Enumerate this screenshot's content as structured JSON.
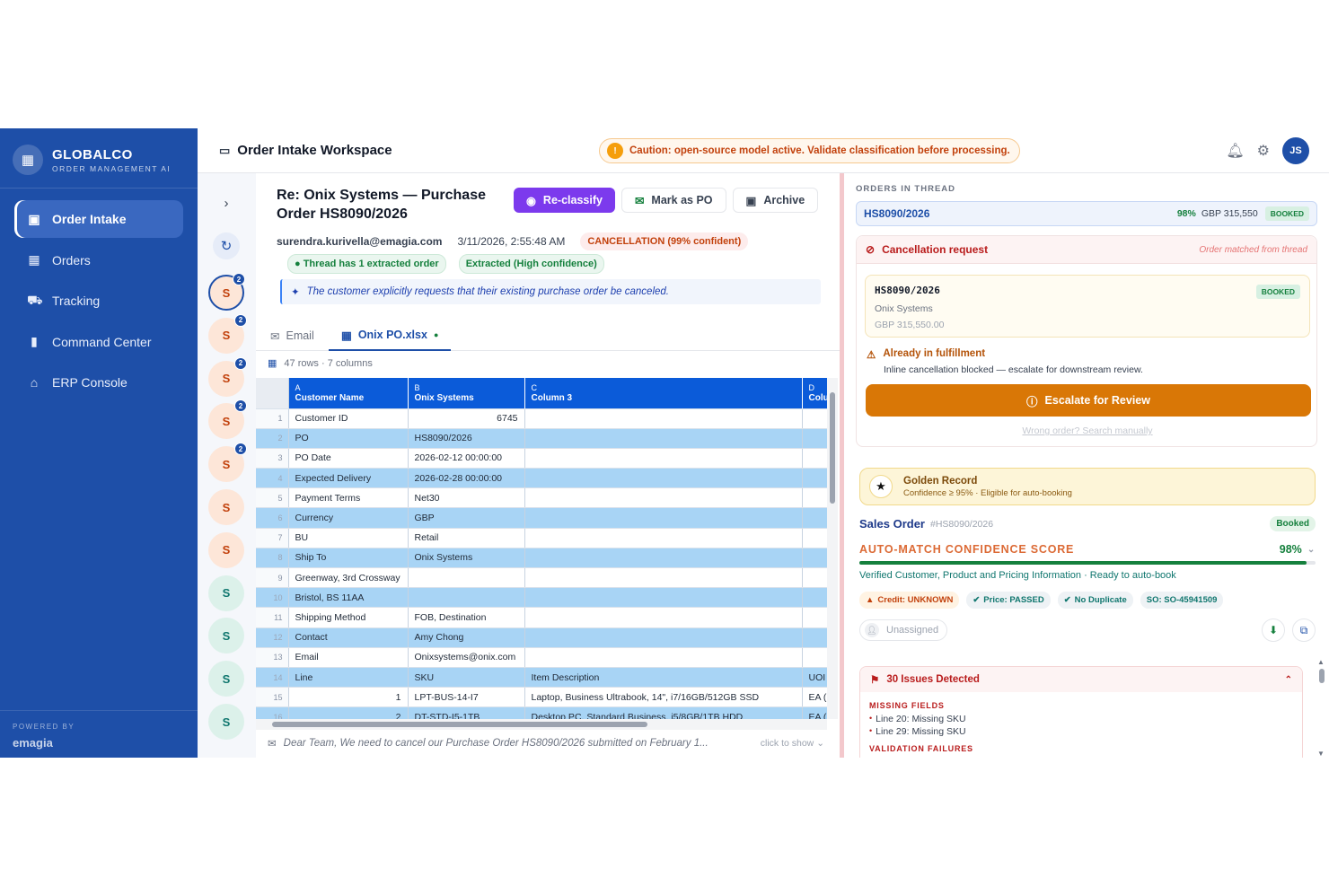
{
  "sidebar": {
    "brand_name": "GLOBALCO",
    "brand_sub": "ORDER MANAGEMENT AI",
    "items": [
      {
        "label": "Order Intake",
        "icon": "inbox-icon"
      },
      {
        "label": "Orders",
        "icon": "grid-icon"
      },
      {
        "label": "Tracking",
        "icon": "truck-icon"
      },
      {
        "label": "Command Center",
        "icon": "bar-chart-icon"
      },
      {
        "label": "ERP Console",
        "icon": "warehouse-icon"
      }
    ],
    "powered_by": "POWERED BY",
    "powered_logo": "emagia"
  },
  "header": {
    "title": "Order Intake Workspace",
    "caution": "Caution: open-source model active. Validate classification before processing.",
    "avatar": "JS"
  },
  "rail": {
    "threads": [
      {
        "letter": "S",
        "badge": "2",
        "color": "orange"
      },
      {
        "letter": "S",
        "badge": "2",
        "color": "orange"
      },
      {
        "letter": "S",
        "badge": "2",
        "color": "orange"
      },
      {
        "letter": "S",
        "badge": "2",
        "color": "orange"
      },
      {
        "letter": "S",
        "badge": "2",
        "color": "orange"
      },
      {
        "letter": "S",
        "badge": "",
        "color": "orange"
      },
      {
        "letter": "S",
        "badge": "",
        "color": "orange"
      },
      {
        "letter": "S",
        "badge": "",
        "color": "green"
      },
      {
        "letter": "S",
        "badge": "",
        "color": "green"
      },
      {
        "letter": "S",
        "badge": "",
        "color": "green"
      },
      {
        "letter": "S",
        "badge": "",
        "color": "green"
      }
    ]
  },
  "email": {
    "subject": "Re: Onix Systems — Purchase Order HS8090/2026",
    "from": "surendra.kurivella@emagia.com",
    "date": "3/11/2026, 2:55:48 AM",
    "classification": "CANCELLATION (99% confident)",
    "chip_thread": "● Thread has 1 extracted order",
    "chip_extracted": "Extracted (High confidence)",
    "ai_note": "The customer explicitly requests that their existing purchase order be canceled.",
    "preview": "Dear Team, We need to cancel our Purchase Order HS8090/2026 submitted on February 1...",
    "click_to_show": "click to show"
  },
  "actions": {
    "reclassify": "Re-classify",
    "mark_po": "Mark as PO",
    "archive": "Archive"
  },
  "tabs": {
    "email": "Email",
    "attachment": "Onix PO.xlsx"
  },
  "sheet": {
    "meta": "47 rows · 7 columns",
    "headers": [
      {
        "letter": "A",
        "name": "Customer Name"
      },
      {
        "letter": "B",
        "name": "Onix Systems"
      },
      {
        "letter": "C",
        "name": "Column 3"
      },
      {
        "letter": "D",
        "name": "Colu"
      }
    ],
    "rows": [
      [
        "1",
        "Customer ID",
        "6745",
        "",
        ""
      ],
      [
        "2",
        "PO",
        "HS8090/2026",
        "",
        ""
      ],
      [
        "3",
        "PO Date",
        "2026-02-12 00:00:00",
        "",
        ""
      ],
      [
        "4",
        "Expected Delivery",
        "2026-02-28 00:00:00",
        "",
        ""
      ],
      [
        "5",
        "Payment Terms",
        "Net30",
        "",
        ""
      ],
      [
        "6",
        "Currency",
        "GBP",
        "",
        ""
      ],
      [
        "7",
        "BU",
        "Retail",
        "",
        ""
      ],
      [
        "8",
        "Ship To",
        "Onix Systems",
        "",
        ""
      ],
      [
        "9",
        "Greenway, 3rd Crossway",
        "",
        "",
        ""
      ],
      [
        "10",
        "Bristol, BS 11AA",
        "",
        "",
        ""
      ],
      [
        "11",
        "Shipping Method",
        "FOB, Destination",
        "",
        ""
      ],
      [
        "12",
        "Contact",
        "Amy Chong",
        "",
        ""
      ],
      [
        "13",
        "Email",
        "Onixsystems@onix.com",
        "",
        ""
      ],
      [
        "14",
        "Line",
        "SKU",
        "Item Description",
        "UOI"
      ],
      [
        "15",
        "1",
        "LPT-BUS-14-I7",
        "Laptop, Business Ultrabook, 14\", i7/16GB/512GB SSD",
        "EA ("
      ],
      [
        "16",
        "2",
        "DT-STD-I5-1TB",
        "Desktop PC, Standard Business, i5/8GB/1TB HDD",
        "EA ("
      ]
    ]
  },
  "right": {
    "orders_label": "ORDERS IN THREAD",
    "order": {
      "id": "HS8090/2026",
      "pct": "98%",
      "amount": "GBP 315,550",
      "status": "BOOKED"
    },
    "cancel_title": "Cancellation request",
    "cancel_note": "Order matched from thread",
    "matched": {
      "id": "HS8090/2026",
      "company": "Onix Systems",
      "amount": "GBP 315,550.00",
      "status": "BOOKED"
    },
    "fulfil_title": "Already in fulfillment",
    "fulfil_sub": "Inline cancellation blocked — escalate for downstream review.",
    "escalate": "Escalate for Review",
    "wrong_order": "Wrong order? Search manually",
    "golden_title": "Golden Record",
    "golden_sub": "Confidence ≥ 95% · Eligible for auto-booking",
    "so_title": "Sales Order",
    "so_id": "#HS8090/2026",
    "so_status": "Booked",
    "score_label": "AUTO-MATCH CONFIDENCE SCORE",
    "score_pct": "98%",
    "score_value": 98,
    "verified": "Verified Customer, Product and Pricing Information · Ready to auto-book",
    "pills": [
      {
        "label": "Credit: UNKNOWN",
        "kind": "warn"
      },
      {
        "label": "Price: PASSED",
        "kind": "ok"
      },
      {
        "label": "No Duplicate",
        "kind": "ok"
      },
      {
        "label": "SO: SO-45941509",
        "kind": "ok"
      }
    ],
    "assignee": "Unassigned",
    "issues_title": "30 Issues Detected",
    "missing_label": "MISSING FIELDS",
    "missing": [
      "Line 20: Missing SKU",
      "Line 29: Missing SKU"
    ],
    "validation_label": "VALIDATION FAILURES"
  },
  "colors": {
    "sidebar": "#1e4fa8",
    "primary_button": "#7c3aed",
    "escalate": "#d97706",
    "sheet_header": "#0b5bd9",
    "alt_row": "#a8d4f5"
  }
}
